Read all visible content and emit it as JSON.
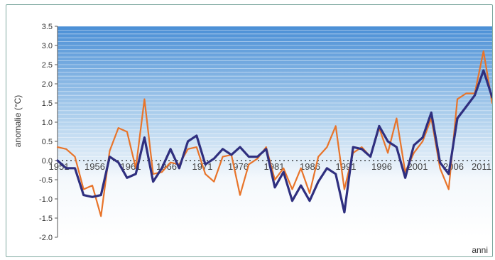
{
  "chart_data": {
    "type": "line",
    "xlabel": "anni",
    "ylabel": "anomalie (°C)",
    "ylim": [
      -2.0,
      3.5
    ],
    "xlim": [
      1961,
      2011
    ],
    "y_ticks": [
      "3.5",
      "3.0",
      "2.5",
      "2.0",
      "1.5",
      "1.0",
      "0.5",
      "0.0",
      "-0.5",
      "-1.0",
      "-1.5",
      "-2.0"
    ],
    "x_ticks": [
      "1951",
      "1956",
      "1961",
      "1966",
      "1971",
      "1976",
      "1981",
      "1986",
      "1991",
      "1996",
      "2001",
      "2006",
      "2011"
    ],
    "series": [
      {
        "color": "#2f2f7f",
        "x": [
          1961,
          1962,
          1963,
          1964,
          1965,
          1966,
          1967,
          1968,
          1969,
          1970,
          1971,
          1972,
          1973,
          1974,
          1975,
          1976,
          1977,
          1978,
          1979,
          1980,
          1981,
          1982,
          1983,
          1984,
          1985,
          1986,
          1987,
          1988,
          1989,
          1990,
          1991,
          1992,
          1993,
          1994,
          1995,
          1996,
          1997,
          1998,
          1999,
          2000,
          2001,
          2002,
          2003,
          2004,
          2005,
          2006,
          2007,
          2008,
          2009,
          2010,
          2011
        ],
        "values": [
          0.0,
          -0.2,
          -0.2,
          -0.9,
          -0.95,
          -0.9,
          0.1,
          -0.05,
          -0.45,
          -0.35,
          0.6,
          -0.55,
          -0.2,
          0.3,
          -0.2,
          0.5,
          0.65,
          -0.1,
          0.05,
          0.3,
          0.15,
          0.35,
          0.1,
          0.1,
          0.3,
          -0.7,
          -0.3,
          -1.05,
          -0.65,
          -1.05,
          -0.55,
          -0.2,
          -0.35,
          -1.35,
          0.35,
          0.3,
          0.1,
          0.9,
          0.5,
          0.35,
          -0.45,
          0.4,
          0.6,
          1.25,
          -0.05,
          -0.35,
          1.1,
          1.4,
          1.7,
          2.35,
          1.65
        ]
      },
      {
        "color": "#e8742a",
        "x": [
          1961,
          1962,
          1963,
          1964,
          1965,
          1966,
          1967,
          1968,
          1969,
          1970,
          1971,
          1972,
          1973,
          1974,
          1975,
          1976,
          1977,
          1978,
          1979,
          1980,
          1981,
          1982,
          1983,
          1984,
          1985,
          1986,
          1987,
          1988,
          1989,
          1990,
          1991,
          1992,
          1993,
          1994,
          1995,
          1996,
          1997,
          1998,
          1999,
          2000,
          2001,
          2002,
          2003,
          2004,
          2005,
          2006,
          2007,
          2008,
          2009,
          2010,
          2011
        ],
        "values": [
          0.35,
          0.3,
          0.1,
          -0.75,
          -0.65,
          -1.45,
          0.25,
          0.85,
          0.75,
          -0.2,
          1.6,
          -0.35,
          -0.3,
          -0.05,
          -0.1,
          0.3,
          0.35,
          -0.35,
          -0.55,
          0.1,
          0.15,
          -0.9,
          -0.1,
          0.05,
          0.35,
          -0.5,
          -0.2,
          -0.75,
          -0.2,
          -0.85,
          0.1,
          0.35,
          0.9,
          -0.75,
          0.2,
          0.35,
          0.1,
          0.85,
          0.2,
          1.1,
          -0.3,
          0.2,
          0.5,
          1.1,
          -0.2,
          -0.75,
          1.6,
          1.75,
          1.75,
          2.85,
          1.5
        ]
      }
    ]
  }
}
